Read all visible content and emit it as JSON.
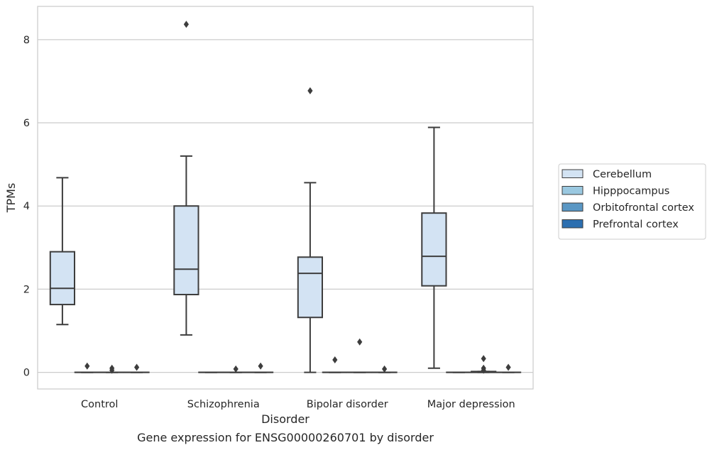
{
  "chart_data": {
    "type": "box",
    "caption": "Gene expression for ENSG00000260701 by disorder",
    "xlabel": "Disorder",
    "ylabel": "TPMs",
    "ylim": [
      -0.4,
      8.8
    ],
    "yticks": [
      0,
      2,
      4,
      6,
      8
    ],
    "grid": "horizontal",
    "legend_position": "right",
    "categories": [
      "Control",
      "Schizophrenia",
      "Bipolar disorder",
      "Major depression"
    ],
    "series": [
      {
        "name": "Cerebellum",
        "color": "#d3e3f3",
        "boxes": [
          {
            "whisker_low": 1.15,
            "q1": 1.63,
            "median": 2.02,
            "q3": 2.9,
            "whisker_high": 4.68,
            "outliers": []
          },
          {
            "whisker_low": 0.9,
            "q1": 1.87,
            "median": 2.48,
            "q3": 4.0,
            "whisker_high": 5.2,
            "outliers": [
              8.37
            ]
          },
          {
            "whisker_low": 0.0,
            "q1": 1.32,
            "median": 2.38,
            "q3": 2.77,
            "whisker_high": 4.56,
            "outliers": [
              6.77
            ]
          },
          {
            "whisker_low": 0.1,
            "q1": 2.08,
            "median": 2.79,
            "q3": 3.83,
            "whisker_high": 5.89,
            "outliers": []
          }
        ]
      },
      {
        "name": "Hipppocampus",
        "color": "#9ac8e0",
        "boxes": [
          {
            "whisker_low": 0,
            "q1": 0,
            "median": 0,
            "q3": 0,
            "whisker_high": 0,
            "outliers": [
              0.15
            ]
          },
          {
            "whisker_low": 0,
            "q1": 0,
            "median": 0,
            "q3": 0,
            "whisker_high": 0,
            "outliers": []
          },
          {
            "whisker_low": 0,
            "q1": 0,
            "median": 0,
            "q3": 0,
            "whisker_high": 0,
            "outliers": [
              0.3
            ]
          },
          {
            "whisker_low": 0,
            "q1": 0,
            "median": 0,
            "q3": 0,
            "whisker_high": 0,
            "outliers": []
          }
        ]
      },
      {
        "name": "Orbitofrontal cortex",
        "color": "#5a97c4",
        "boxes": [
          {
            "whisker_low": 0,
            "q1": 0,
            "median": 0,
            "q3": 0,
            "whisker_high": 0,
            "outliers": [
              0.1,
              0.05
            ]
          },
          {
            "whisker_low": 0,
            "q1": 0,
            "median": 0,
            "q3": 0,
            "whisker_high": 0,
            "outliers": [
              0.08
            ]
          },
          {
            "whisker_low": 0,
            "q1": 0,
            "median": 0,
            "q3": 0,
            "whisker_high": 0,
            "outliers": [
              0.73
            ]
          },
          {
            "whisker_low": 0,
            "q1": 0,
            "median": 0,
            "q3": 0.02,
            "whisker_high": 0.02,
            "outliers": [
              0.33,
              0.1,
              0.05
            ]
          }
        ]
      },
      {
        "name": "Prefrontal cortex",
        "color": "#2c6fb0",
        "boxes": [
          {
            "whisker_low": 0,
            "q1": 0,
            "median": 0,
            "q3": 0,
            "whisker_high": 0,
            "outliers": [
              0.12
            ]
          },
          {
            "whisker_low": 0,
            "q1": 0,
            "median": 0,
            "q3": 0,
            "whisker_high": 0,
            "outliers": [
              0.15
            ]
          },
          {
            "whisker_low": 0,
            "q1": 0,
            "median": 0,
            "q3": 0,
            "whisker_high": 0,
            "outliers": [
              0.08
            ]
          },
          {
            "whisker_low": 0,
            "q1": 0,
            "median": 0,
            "q3": 0,
            "whisker_high": 0,
            "outliers": [
              0.12
            ]
          }
        ]
      }
    ]
  }
}
